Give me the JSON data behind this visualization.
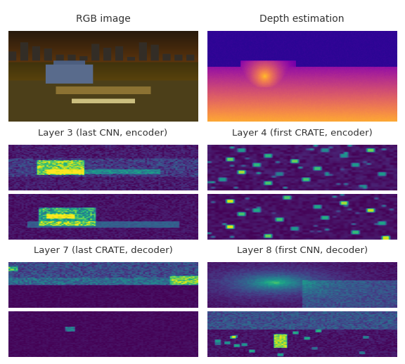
{
  "title_left": "RGB image",
  "title_right": "Depth estimation",
  "label_layer3": "Layer 3 (last CNN, encoder)",
  "label_layer4": "Layer 4 (first CRATE, encoder)",
  "label_layer7": "Layer 7 (last CRATE, decoder)",
  "label_layer8": "Layer 8 (first CNN, decoder)",
  "fig_bg": "#ffffff",
  "label_color": "#333333",
  "label_fontsize": 9.5,
  "title_fontsize": 10
}
